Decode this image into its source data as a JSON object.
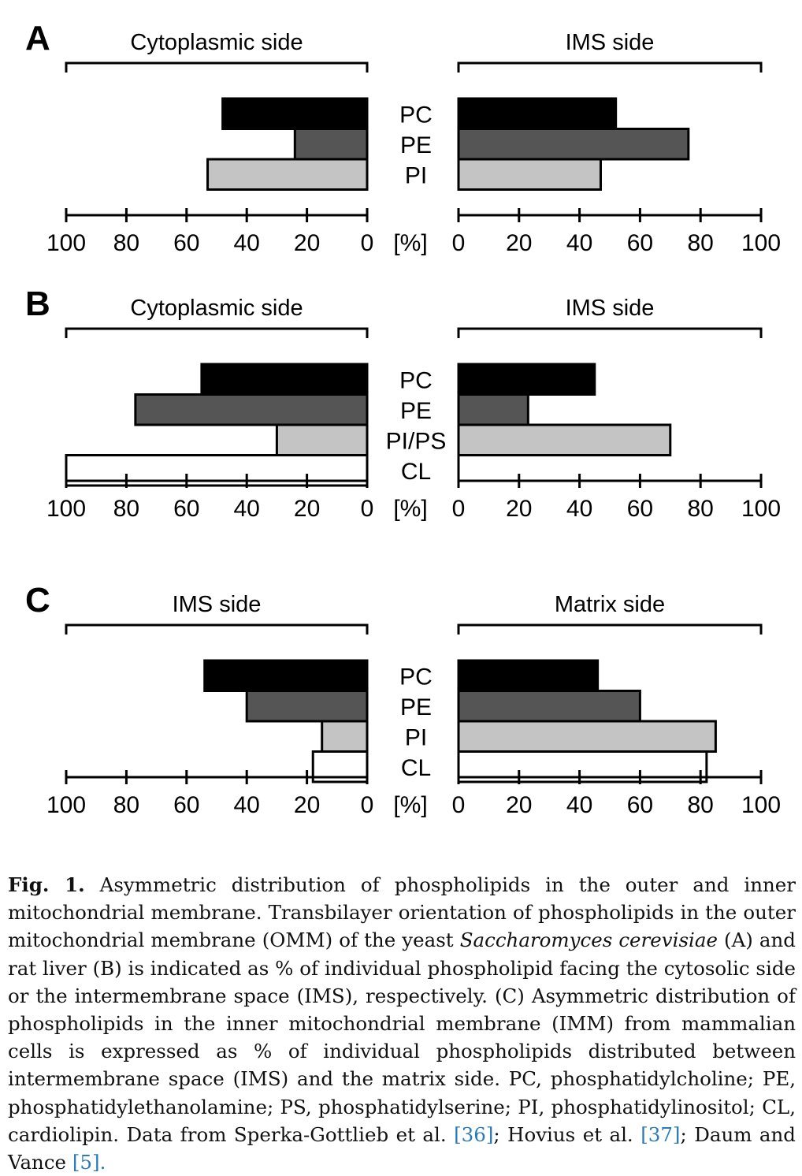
{
  "chart_data": [
    {
      "type": "bar",
      "panel": "A",
      "categories": [
        "PC",
        "PE",
        "PI"
      ],
      "series": [
        {
          "name": "Cytoplasmic side",
          "values": [
            48,
            24,
            53
          ]
        },
        {
          "name": "IMS side",
          "values": [
            52,
            76,
            47
          ]
        }
      ],
      "unit_label": "[%]",
      "xlim": [
        0,
        100
      ],
      "ticks": [
        "100",
        "80",
        "60",
        "40",
        "20",
        "0",
        "0",
        "20",
        "40",
        "60",
        "80",
        "100"
      ]
    },
    {
      "type": "bar",
      "panel": "B",
      "categories": [
        "PC",
        "PE",
        "PI/PS",
        "CL"
      ],
      "series": [
        {
          "name": "Cytoplasmic side",
          "values": [
            55,
            77,
            30,
            100
          ]
        },
        {
          "name": "IMS side",
          "values": [
            45,
            23,
            70,
            0
          ]
        }
      ],
      "unit_label": "[%]",
      "xlim": [
        0,
        100
      ],
      "ticks": [
        "100",
        "80",
        "60",
        "40",
        "20",
        "0",
        "0",
        "20",
        "40",
        "60",
        "80",
        "100"
      ]
    },
    {
      "type": "bar",
      "panel": "C",
      "categories": [
        "PC",
        "PE",
        "PI",
        "CL"
      ],
      "series": [
        {
          "name": "IMS side",
          "values": [
            54,
            40,
            15,
            18
          ]
        },
        {
          "name": "Matrix side",
          "values": [
            46,
            60,
            85,
            82
          ]
        }
      ],
      "unit_label": "[%]",
      "xlim": [
        0,
        100
      ],
      "ticks": [
        "100",
        "80",
        "60",
        "40",
        "20",
        "0",
        "0",
        "20",
        "40",
        "60",
        "80",
        "100"
      ]
    }
  ],
  "colors": [
    "#000000",
    "#555555",
    "#c4c4c4",
    "#ffffff"
  ],
  "caption": {
    "lead": "Fig. 1.",
    "part1": "Asymmetric distribution of phospholipids in the outer and inner mitochondrial membrane. Transbilayer orientation of phospholipids in the outer mitochondrial membrane (OMM) of the yeast",
    "species": "Saccharomyces cerevisiae",
    "part2": "(A) and rat liver (B) is indicated as % of individual phospholipid facing the cytosolic side or the intermembrane space (IMS), respectively. (C) Asymmetric distribution of phospholipids in the inner mitochondrial membrane (IMM) from mammalian cells is expressed as % of individual phospholipids distributed between intermembrane space (IMS) and the matrix side. PC, phosphatidylcholine; PE, phosphatidylethanolamine; PS, phosphatidylserine; PI, phosphatidylinositol; CL, cardiolipin. Data from Sperka-Gottlieb et al.",
    "ref1": "[36]",
    "part3": "; Hovius et al.",
    "ref2": "[37]",
    "part4": "; Daum and Vance",
    "ref3": "[5]."
  }
}
